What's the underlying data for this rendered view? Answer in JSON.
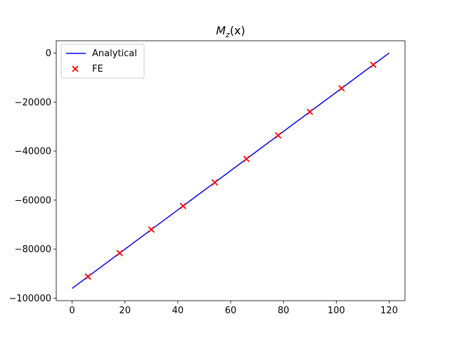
{
  "chart_data": {
    "type": "line",
    "title": {
      "main": "M",
      "sub": "z",
      "rest": "(x)"
    },
    "xlabel": "",
    "ylabel": "",
    "xlim": [
      -6,
      126
    ],
    "ylim": [
      -101000,
      5000
    ],
    "xticks": [
      0,
      20,
      40,
      60,
      80,
      100,
      120
    ],
    "yticks": [
      0,
      -20000,
      -40000,
      -60000,
      -80000,
      -100000
    ],
    "xtick_labels": [
      "0",
      "20",
      "40",
      "60",
      "80",
      "100",
      "120"
    ],
    "ytick_labels": [
      "0",
      "−20000",
      "−40000",
      "−60000",
      "−80000",
      "−100000"
    ],
    "grid": false,
    "legend_position": "upper-left",
    "series": [
      {
        "name": "Analytical",
        "kind": "line",
        "color": "#0000ff",
        "x": [
          0,
          120
        ],
        "y": [
          -96000,
          0
        ]
      },
      {
        "name": "FE",
        "kind": "scatter",
        "marker": "x",
        "color": "#ff0000",
        "x": [
          6,
          18,
          30,
          42,
          54,
          66,
          78,
          90,
          102,
          114
        ],
        "y": [
          -91200,
          -81600,
          -72000,
          -62400,
          -52800,
          -43200,
          -33600,
          -24000,
          -14400,
          -4800
        ]
      }
    ]
  }
}
